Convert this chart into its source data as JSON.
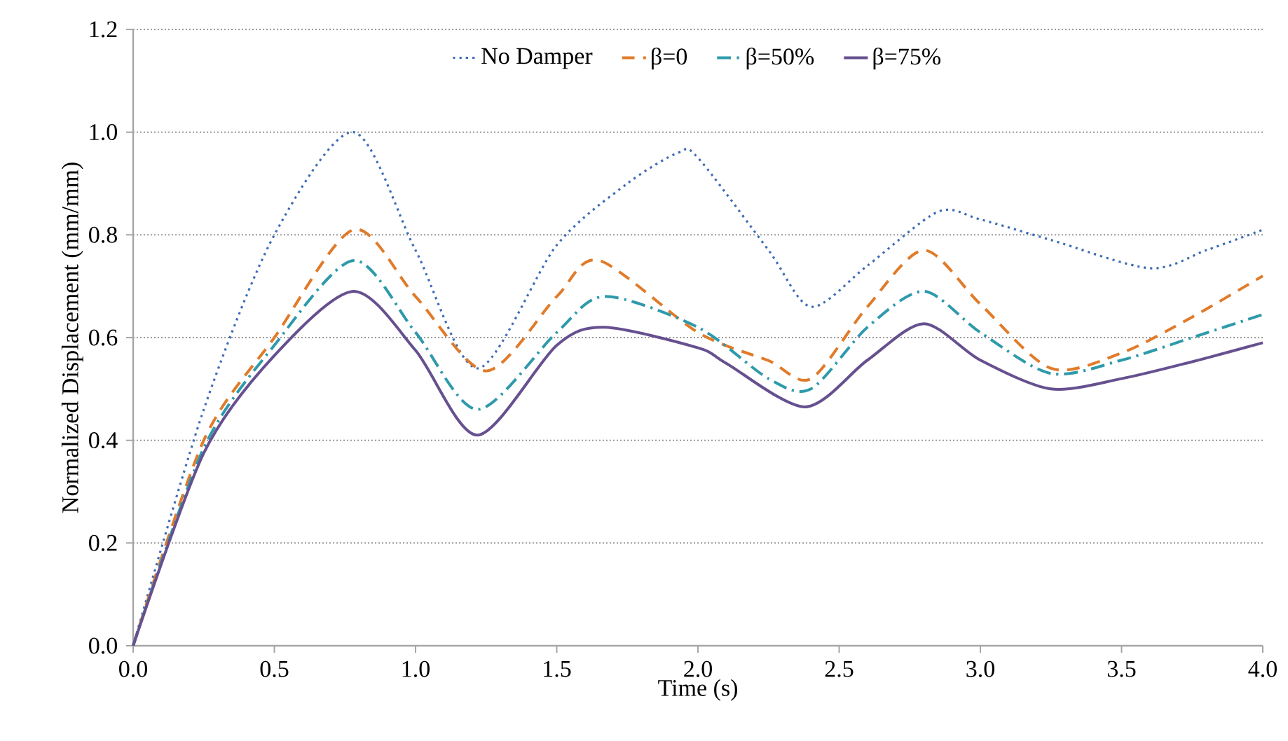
{
  "chart_data": {
    "type": "line",
    "xlabel": "Time (s)",
    "ylabel": "Normalized Displacement (mm/mm)",
    "xlim": [
      0,
      4
    ],
    "ylim": [
      0,
      1.2
    ],
    "xticks": [
      {
        "value": 0,
        "label": "0.0"
      },
      {
        "value": 0.5,
        "label": "0.5"
      },
      {
        "value": 1,
        "label": "1.0"
      },
      {
        "value": 1.5,
        "label": "1.5"
      },
      {
        "value": 2,
        "label": "2.0"
      },
      {
        "value": 2.5,
        "label": "2.5"
      },
      {
        "value": 3,
        "label": "3.0"
      },
      {
        "value": 3.5,
        "label": "3.5"
      },
      {
        "value": 4,
        "label": "4.0"
      }
    ],
    "yticks": [
      {
        "value": 0,
        "label": "0.0"
      },
      {
        "value": 0.2,
        "label": "0.2"
      },
      {
        "value": 0.4,
        "label": "0.4"
      },
      {
        "value": 0.6,
        "label": "0.6"
      },
      {
        "value": 0.8,
        "label": "0.8"
      },
      {
        "value": 1,
        "label": "1.0"
      },
      {
        "value": 1.2,
        "label": "1.2"
      }
    ],
    "grid": "y",
    "legend": "top",
    "marker": "none",
    "series": [
      {
        "name": "No Damper",
        "color": "#3f6db5",
        "line_style": "dotted",
        "x": [
          0,
          0.25,
          0.5,
          0.78,
          1.0,
          1.22,
          1.5,
          1.75,
          1.93,
          2.0,
          2.25,
          2.4,
          2.6,
          2.85,
          3.0,
          3.25,
          3.6,
          3.8,
          4.0
        ],
        "values": [
          0,
          0.46,
          0.8,
          1.0,
          0.77,
          0.54,
          0.78,
          0.9,
          0.96,
          0.95,
          0.77,
          0.66,
          0.74,
          0.845,
          0.83,
          0.79,
          0.735,
          0.77,
          0.81
        ]
      },
      {
        "name": "β=0",
        "color": "#e07b2a",
        "line_style": "dashed",
        "x": [
          0,
          0.25,
          0.5,
          0.78,
          1.0,
          1.25,
          1.5,
          1.65,
          2.0,
          2.25,
          2.4,
          2.6,
          2.8,
          3.0,
          3.25,
          3.5,
          3.75,
          4.0
        ],
        "values": [
          0,
          0.4,
          0.6,
          0.81,
          0.68,
          0.535,
          0.68,
          0.75,
          0.61,
          0.555,
          0.52,
          0.66,
          0.77,
          0.665,
          0.54,
          0.57,
          0.64,
          0.72
        ]
      },
      {
        "name": "β=50%",
        "color": "#2e9aab",
        "line_style": "dashdot",
        "x": [
          0,
          0.25,
          0.5,
          0.78,
          1.0,
          1.22,
          1.5,
          1.67,
          2.0,
          2.25,
          2.4,
          2.6,
          2.8,
          3.0,
          3.25,
          3.5,
          3.75,
          4.0
        ],
        "values": [
          0,
          0.385,
          0.585,
          0.75,
          0.61,
          0.46,
          0.61,
          0.68,
          0.62,
          0.52,
          0.5,
          0.62,
          0.69,
          0.61,
          0.53,
          0.556,
          0.6,
          0.645
        ]
      },
      {
        "name": "β=75%",
        "color": "#66508f",
        "line_style": "solid",
        "x": [
          0,
          0.25,
          0.5,
          0.78,
          1.0,
          1.22,
          1.5,
          1.67,
          2.0,
          2.1,
          2.38,
          2.6,
          2.8,
          3.0,
          3.25,
          3.5,
          3.75,
          4.0
        ],
        "values": [
          0,
          0.375,
          0.565,
          0.69,
          0.575,
          0.41,
          0.585,
          0.62,
          0.58,
          0.55,
          0.465,
          0.556,
          0.627,
          0.556,
          0.5,
          0.52,
          0.553,
          0.59
        ]
      }
    ]
  }
}
